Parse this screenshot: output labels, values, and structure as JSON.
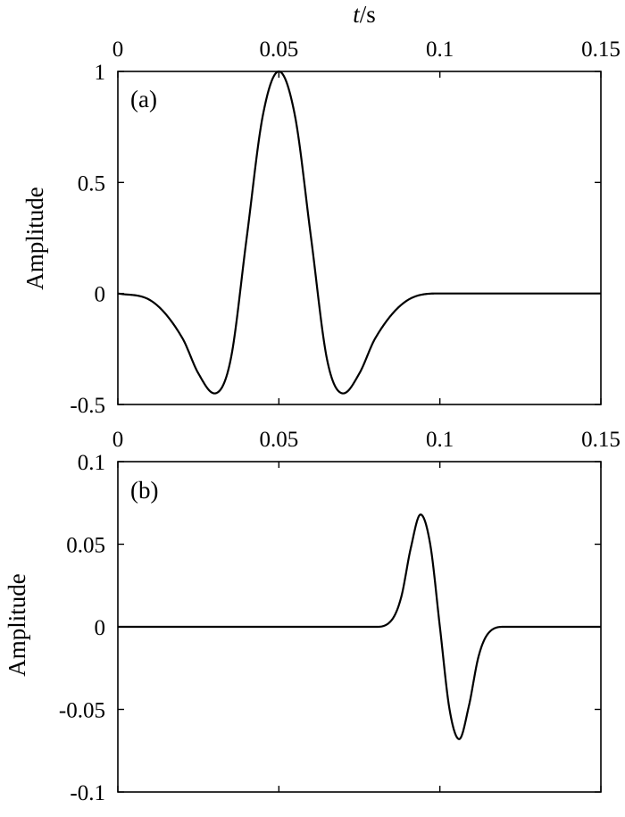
{
  "xlabel": {
    "italic": "t",
    "rest": "/s"
  },
  "chart_data": [
    {
      "type": "line",
      "panel_label": "(a)",
      "xlabel": "t/s",
      "ylabel": "Amplitude",
      "xlim": [
        0,
        0.15
      ],
      "ylim": [
        -0.5,
        1
      ],
      "x_ticks": [
        0,
        0.05,
        0.1,
        0.15
      ],
      "x_tick_labels": [
        "0",
        "0.05",
        "0.1",
        "0.15"
      ],
      "y_ticks": [
        1,
        0.5,
        0,
        -0.5
      ],
      "y_tick_labels": [
        "1",
        "0.5",
        "0",
        "-0.5"
      ],
      "grid": false,
      "series": [
        {
          "x": [
            0,
            0.01,
            0.02,
            0.025,
            0.03,
            0.035,
            0.04,
            0.045,
            0.05,
            0.055,
            0.06,
            0.065,
            0.07,
            0.075,
            0.08,
            0.09,
            0.1,
            0.15
          ],
          "y": [
            0,
            -0.03,
            -0.2,
            -0.36,
            -0.45,
            -0.3,
            0.25,
            0.8,
            1.0,
            0.8,
            0.25,
            -0.3,
            -0.45,
            -0.36,
            -0.2,
            -0.03,
            0,
            0
          ]
        }
      ]
    },
    {
      "type": "line",
      "panel_label": "(b)",
      "ylabel": "Amplitude",
      "xlim": [
        0,
        0.15
      ],
      "ylim": [
        -0.1,
        0.1
      ],
      "x_ticks": [
        0,
        0.05,
        0.1,
        0.15
      ],
      "x_tick_labels": [
        "0",
        "0.05",
        "0.1",
        "0.15"
      ],
      "y_ticks": [
        0.1,
        0.05,
        0,
        -0.05,
        -0.1
      ],
      "y_tick_labels": [
        "0.1",
        "0.05",
        "0",
        "-0.05",
        "-0.1"
      ],
      "grid": false,
      "series": [
        {
          "x": [
            0,
            0.08,
            0.085,
            0.088,
            0.091,
            0.094,
            0.097,
            0.1,
            0.103,
            0.106,
            0.109,
            0.112,
            0.115,
            0.12,
            0.15
          ],
          "y": [
            0,
            0,
            0.004,
            0.018,
            0.048,
            0.068,
            0.05,
            0,
            -0.05,
            -0.068,
            -0.048,
            -0.018,
            -0.004,
            0,
            0
          ]
        }
      ]
    }
  ]
}
